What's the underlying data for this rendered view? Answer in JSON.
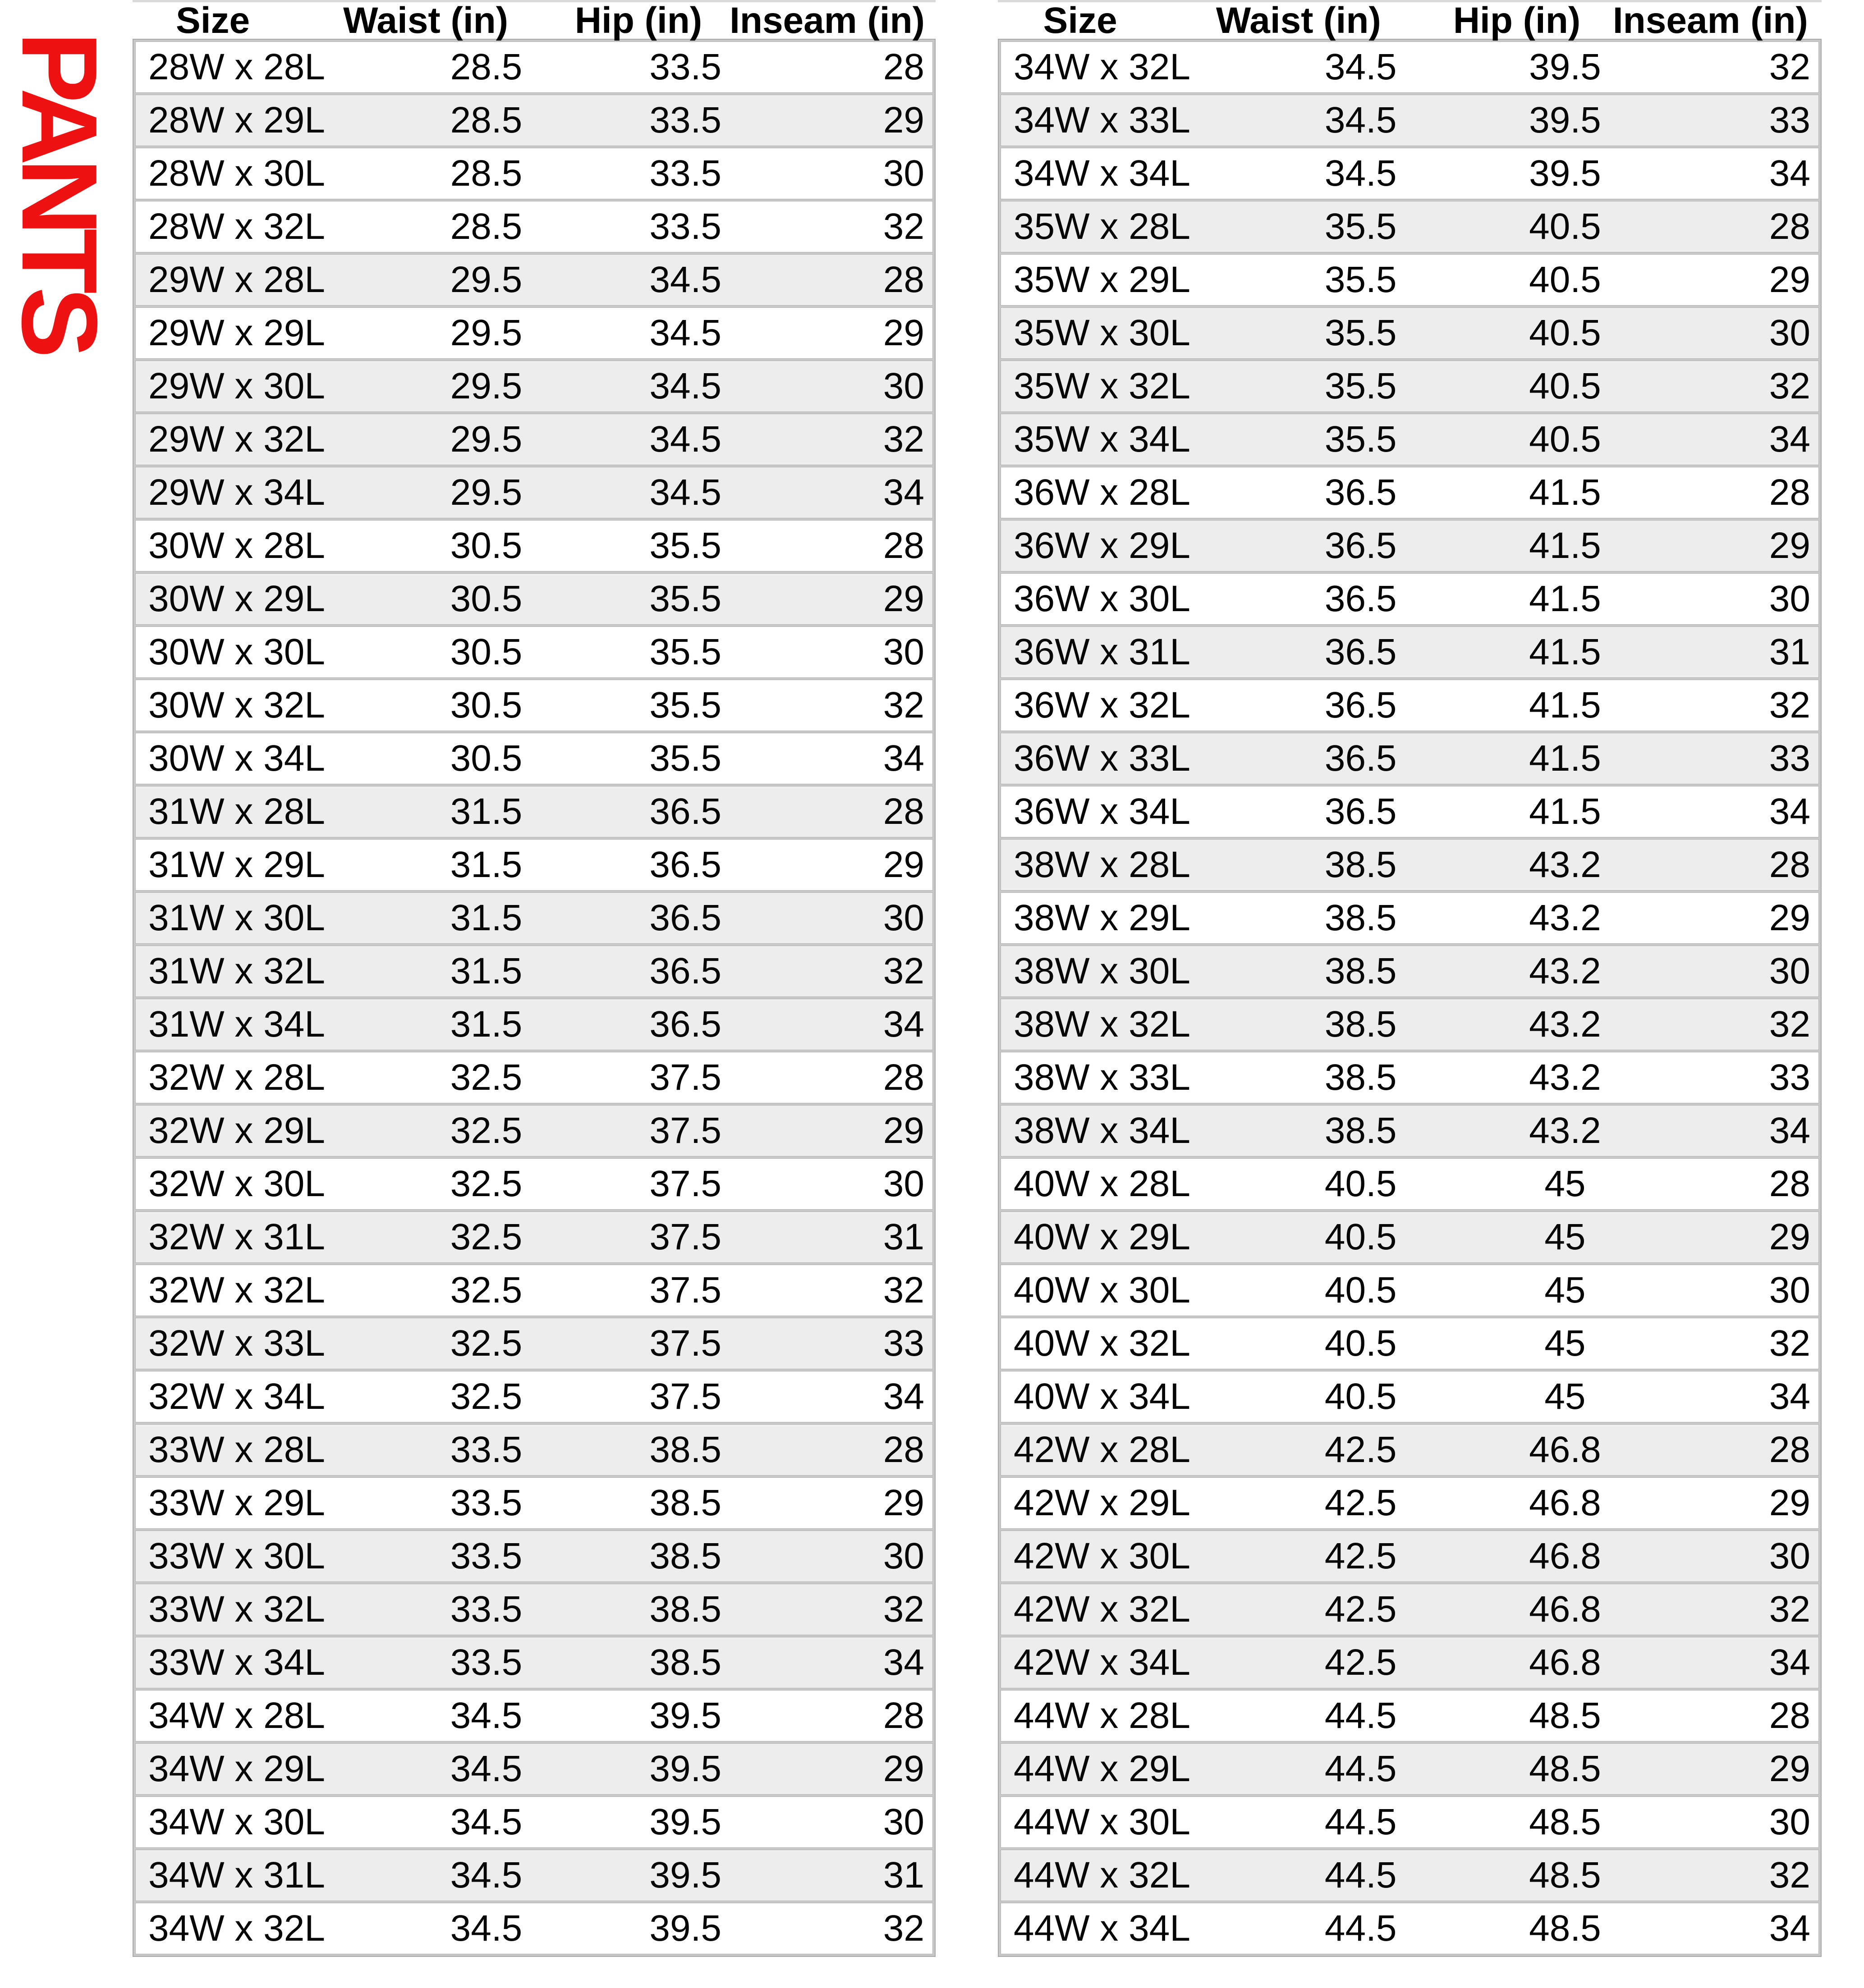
{
  "pants_label": {
    "text": "PANTS"
  },
  "colors": {
    "accent-red": "#ee1111",
    "row-shaded": "#ededed",
    "grid-gray": "#c8c8c8",
    "border-gray": "#a9a9a9",
    "row-outline": "#b4b4b4",
    "header-line": "#d9d9d9"
  },
  "chart_data": [
    {
      "type": "table",
      "title": "PANTS (sizes 28W-34W)",
      "columns": [
        "Size",
        "Waist (in)",
        "Hip (in)",
        "Inseam (in)"
      ],
      "rows": [
        {
          "size": "28W x 28L",
          "waist": "28.5",
          "hip": "33.5",
          "inseam": "28",
          "shaded": false
        },
        {
          "size": "28W x 29L",
          "waist": "28.5",
          "hip": "33.5",
          "inseam": "29",
          "shaded": true
        },
        {
          "size": "28W x 30L",
          "waist": "28.5",
          "hip": "33.5",
          "inseam": "30",
          "shaded": false
        },
        {
          "size": "28W x 32L",
          "waist": "28.5",
          "hip": "33.5",
          "inseam": "32",
          "shaded": false
        },
        {
          "size": "29W x 28L",
          "waist": "29.5",
          "hip": "34.5",
          "inseam": "28",
          "shaded": true
        },
        {
          "size": "29W x 29L",
          "waist": "29.5",
          "hip": "34.5",
          "inseam": "29",
          "shaded": false
        },
        {
          "size": "29W x 30L",
          "waist": "29.5",
          "hip": "34.5",
          "inseam": "30",
          "shaded": true
        },
        {
          "size": "29W x 32L",
          "waist": "29.5",
          "hip": "34.5",
          "inseam": "32",
          "shaded": true
        },
        {
          "size": "29W x 34L",
          "waist": "29.5",
          "hip": "34.5",
          "inseam": "34",
          "shaded": true
        },
        {
          "size": "30W x 28L",
          "waist": "30.5",
          "hip": "35.5",
          "inseam": "28",
          "shaded": false
        },
        {
          "size": "30W x 29L",
          "waist": "30.5",
          "hip": "35.5",
          "inseam": "29",
          "shaded": true
        },
        {
          "size": "30W x 30L",
          "waist": "30.5",
          "hip": "35.5",
          "inseam": "30",
          "shaded": false
        },
        {
          "size": "30W x 32L",
          "waist": "30.5",
          "hip": "35.5",
          "inseam": "32",
          "shaded": false
        },
        {
          "size": "30W x 34L",
          "waist": "30.5",
          "hip": "35.5",
          "inseam": "34",
          "shaded": false
        },
        {
          "size": "31W x 28L",
          "waist": "31.5",
          "hip": "36.5",
          "inseam": "28",
          "shaded": true
        },
        {
          "size": "31W x 29L",
          "waist": "31.5",
          "hip": "36.5",
          "inseam": "29",
          "shaded": false
        },
        {
          "size": "31W x 30L",
          "waist": "31.5",
          "hip": "36.5",
          "inseam": "30",
          "shaded": true
        },
        {
          "size": "31W x 32L",
          "waist": "31.5",
          "hip": "36.5",
          "inseam": "32",
          "shaded": true
        },
        {
          "size": "31W x 34L",
          "waist": "31.5",
          "hip": "36.5",
          "inseam": "34",
          "shaded": true
        },
        {
          "size": "32W x 28L",
          "waist": "32.5",
          "hip": "37.5",
          "inseam": "28",
          "shaded": false
        },
        {
          "size": "32W x 29L",
          "waist": "32.5",
          "hip": "37.5",
          "inseam": "29",
          "shaded": true
        },
        {
          "size": "32W x 30L",
          "waist": "32.5",
          "hip": "37.5",
          "inseam": "30",
          "shaded": false
        },
        {
          "size": "32W x 31L",
          "waist": "32.5",
          "hip": "37.5",
          "inseam": "31",
          "shaded": true
        },
        {
          "size": "32W x 32L",
          "waist": "32.5",
          "hip": "37.5",
          "inseam": "32",
          "shaded": false
        },
        {
          "size": "32W x 33L",
          "waist": "32.5",
          "hip": "37.5",
          "inseam": "33",
          "shaded": true
        },
        {
          "size": "32W x 34L",
          "waist": "32.5",
          "hip": "37.5",
          "inseam": "34",
          "shaded": false
        },
        {
          "size": "33W x 28L",
          "waist": "33.5",
          "hip": "38.5",
          "inseam": "28",
          "shaded": true
        },
        {
          "size": "33W x 29L",
          "waist": "33.5",
          "hip": "38.5",
          "inseam": "29",
          "shaded": false
        },
        {
          "size": "33W x 30L",
          "waist": "33.5",
          "hip": "38.5",
          "inseam": "30",
          "shaded": true
        },
        {
          "size": "33W x 32L",
          "waist": "33.5",
          "hip": "38.5",
          "inseam": "32",
          "shaded": true
        },
        {
          "size": "33W x 34L",
          "waist": "33.5",
          "hip": "38.5",
          "inseam": "34",
          "shaded": true
        },
        {
          "size": "34W x 28L",
          "waist": "34.5",
          "hip": "39.5",
          "inseam": "28",
          "shaded": false
        },
        {
          "size": "34W x 29L",
          "waist": "34.5",
          "hip": "39.5",
          "inseam": "29",
          "shaded": true
        },
        {
          "size": "34W x 30L",
          "waist": "34.5",
          "hip": "39.5",
          "inseam": "30",
          "shaded": false
        },
        {
          "size": "34W x 31L",
          "waist": "34.5",
          "hip": "39.5",
          "inseam": "31",
          "shaded": true
        },
        {
          "size": "34W x 32L",
          "waist": "34.5",
          "hip": "39.5",
          "inseam": "32",
          "shaded": false
        }
      ]
    },
    {
      "type": "table",
      "title": "PANTS (sizes 34W-44W)",
      "columns": [
        "Size",
        "Waist (in)",
        "Hip (in)",
        "Inseam (in)"
      ],
      "rows": [
        {
          "size": "34W x 32L",
          "waist": "34.5",
          "hip": "39.5",
          "inseam": "32",
          "shaded": false
        },
        {
          "size": "34W x 33L",
          "waist": "34.5",
          "hip": "39.5",
          "inseam": "33",
          "shaded": true
        },
        {
          "size": "34W x 34L",
          "waist": "34.5",
          "hip": "39.5",
          "inseam": "34",
          "shaded": false
        },
        {
          "size": "35W x 28L",
          "waist": "35.5",
          "hip": "40.5",
          "inseam": "28",
          "shaded": true
        },
        {
          "size": "35W x 29L",
          "waist": "35.5",
          "hip": "40.5",
          "inseam": "29",
          "shaded": false
        },
        {
          "size": "35W x 30L",
          "waist": "35.5",
          "hip": "40.5",
          "inseam": "30",
          "shaded": true
        },
        {
          "size": "35W x 32L",
          "waist": "35.5",
          "hip": "40.5",
          "inseam": "32",
          "shaded": true
        },
        {
          "size": "35W x 34L",
          "waist": "35.5",
          "hip": "40.5",
          "inseam": "34",
          "shaded": true
        },
        {
          "size": "36W x 28L",
          "waist": "36.5",
          "hip": "41.5",
          "inseam": "28",
          "shaded": false
        },
        {
          "size": "36W x 29L",
          "waist": "36.5",
          "hip": "41.5",
          "inseam": "29",
          "shaded": true
        },
        {
          "size": "36W x 30L",
          "waist": "36.5",
          "hip": "41.5",
          "inseam": "30",
          "shaded": false
        },
        {
          "size": "36W x 31L",
          "waist": "36.5",
          "hip": "41.5",
          "inseam": "31",
          "shaded": true
        },
        {
          "size": "36W x 32L",
          "waist": "36.5",
          "hip": "41.5",
          "inseam": "32",
          "shaded": false
        },
        {
          "size": "36W x 33L",
          "waist": "36.5",
          "hip": "41.5",
          "inseam": "33",
          "shaded": true
        },
        {
          "size": "36W x 34L",
          "waist": "36.5",
          "hip": "41.5",
          "inseam": "34",
          "shaded": false
        },
        {
          "size": "38W x 28L",
          "waist": "38.5",
          "hip": "43.2",
          "inseam": "28",
          "shaded": true
        },
        {
          "size": "38W x 29L",
          "waist": "38.5",
          "hip": "43.2",
          "inseam": "29",
          "shaded": false
        },
        {
          "size": "38W x 30L",
          "waist": "38.5",
          "hip": "43.2",
          "inseam": "30",
          "shaded": true
        },
        {
          "size": "38W x 32L",
          "waist": "38.5",
          "hip": "43.2",
          "inseam": "32",
          "shaded": true
        },
        {
          "size": "38W x 33L",
          "waist": "38.5",
          "hip": "43.2",
          "inseam": "33",
          "shaded": false
        },
        {
          "size": "38W x 34L",
          "waist": "38.5",
          "hip": "43.2",
          "inseam": "34",
          "shaded": true
        },
        {
          "size": "40W x 28L",
          "waist": "40.5",
          "hip": "45",
          "inseam": "28",
          "shaded": false
        },
        {
          "size": "40W x 29L",
          "waist": "40.5",
          "hip": "45",
          "inseam": "29",
          "shaded": true
        },
        {
          "size": "40W x 30L",
          "waist": "40.5",
          "hip": "45",
          "inseam": "30",
          "shaded": false
        },
        {
          "size": "40W x 32L",
          "waist": "40.5",
          "hip": "45",
          "inseam": "32",
          "shaded": false
        },
        {
          "size": "40W x 34L",
          "waist": "40.5",
          "hip": "45",
          "inseam": "34",
          "shaded": false
        },
        {
          "size": "42W x 28L",
          "waist": "42.5",
          "hip": "46.8",
          "inseam": "28",
          "shaded": true
        },
        {
          "size": "42W x 29L",
          "waist": "42.5",
          "hip": "46.8",
          "inseam": "29",
          "shaded": false
        },
        {
          "size": "42W x 30L",
          "waist": "42.5",
          "hip": "46.8",
          "inseam": "30",
          "shaded": true
        },
        {
          "size": "42W x 32L",
          "waist": "42.5",
          "hip": "46.8",
          "inseam": "32",
          "shaded": true
        },
        {
          "size": "42W x 34L",
          "waist": "42.5",
          "hip": "46.8",
          "inseam": "34",
          "shaded": true
        },
        {
          "size": "44W x 28L",
          "waist": "44.5",
          "hip": "48.5",
          "inseam": "28",
          "shaded": false
        },
        {
          "size": "44W x 29L",
          "waist": "44.5",
          "hip": "48.5",
          "inseam": "29",
          "shaded": true
        },
        {
          "size": "44W x 30L",
          "waist": "44.5",
          "hip": "48.5",
          "inseam": "30",
          "shaded": false
        },
        {
          "size": "44W x 32L",
          "waist": "44.5",
          "hip": "48.5",
          "inseam": "32",
          "shaded": true
        },
        {
          "size": "44W x 34L",
          "waist": "44.5",
          "hip": "48.5",
          "inseam": "34",
          "shaded": false
        }
      ]
    }
  ]
}
